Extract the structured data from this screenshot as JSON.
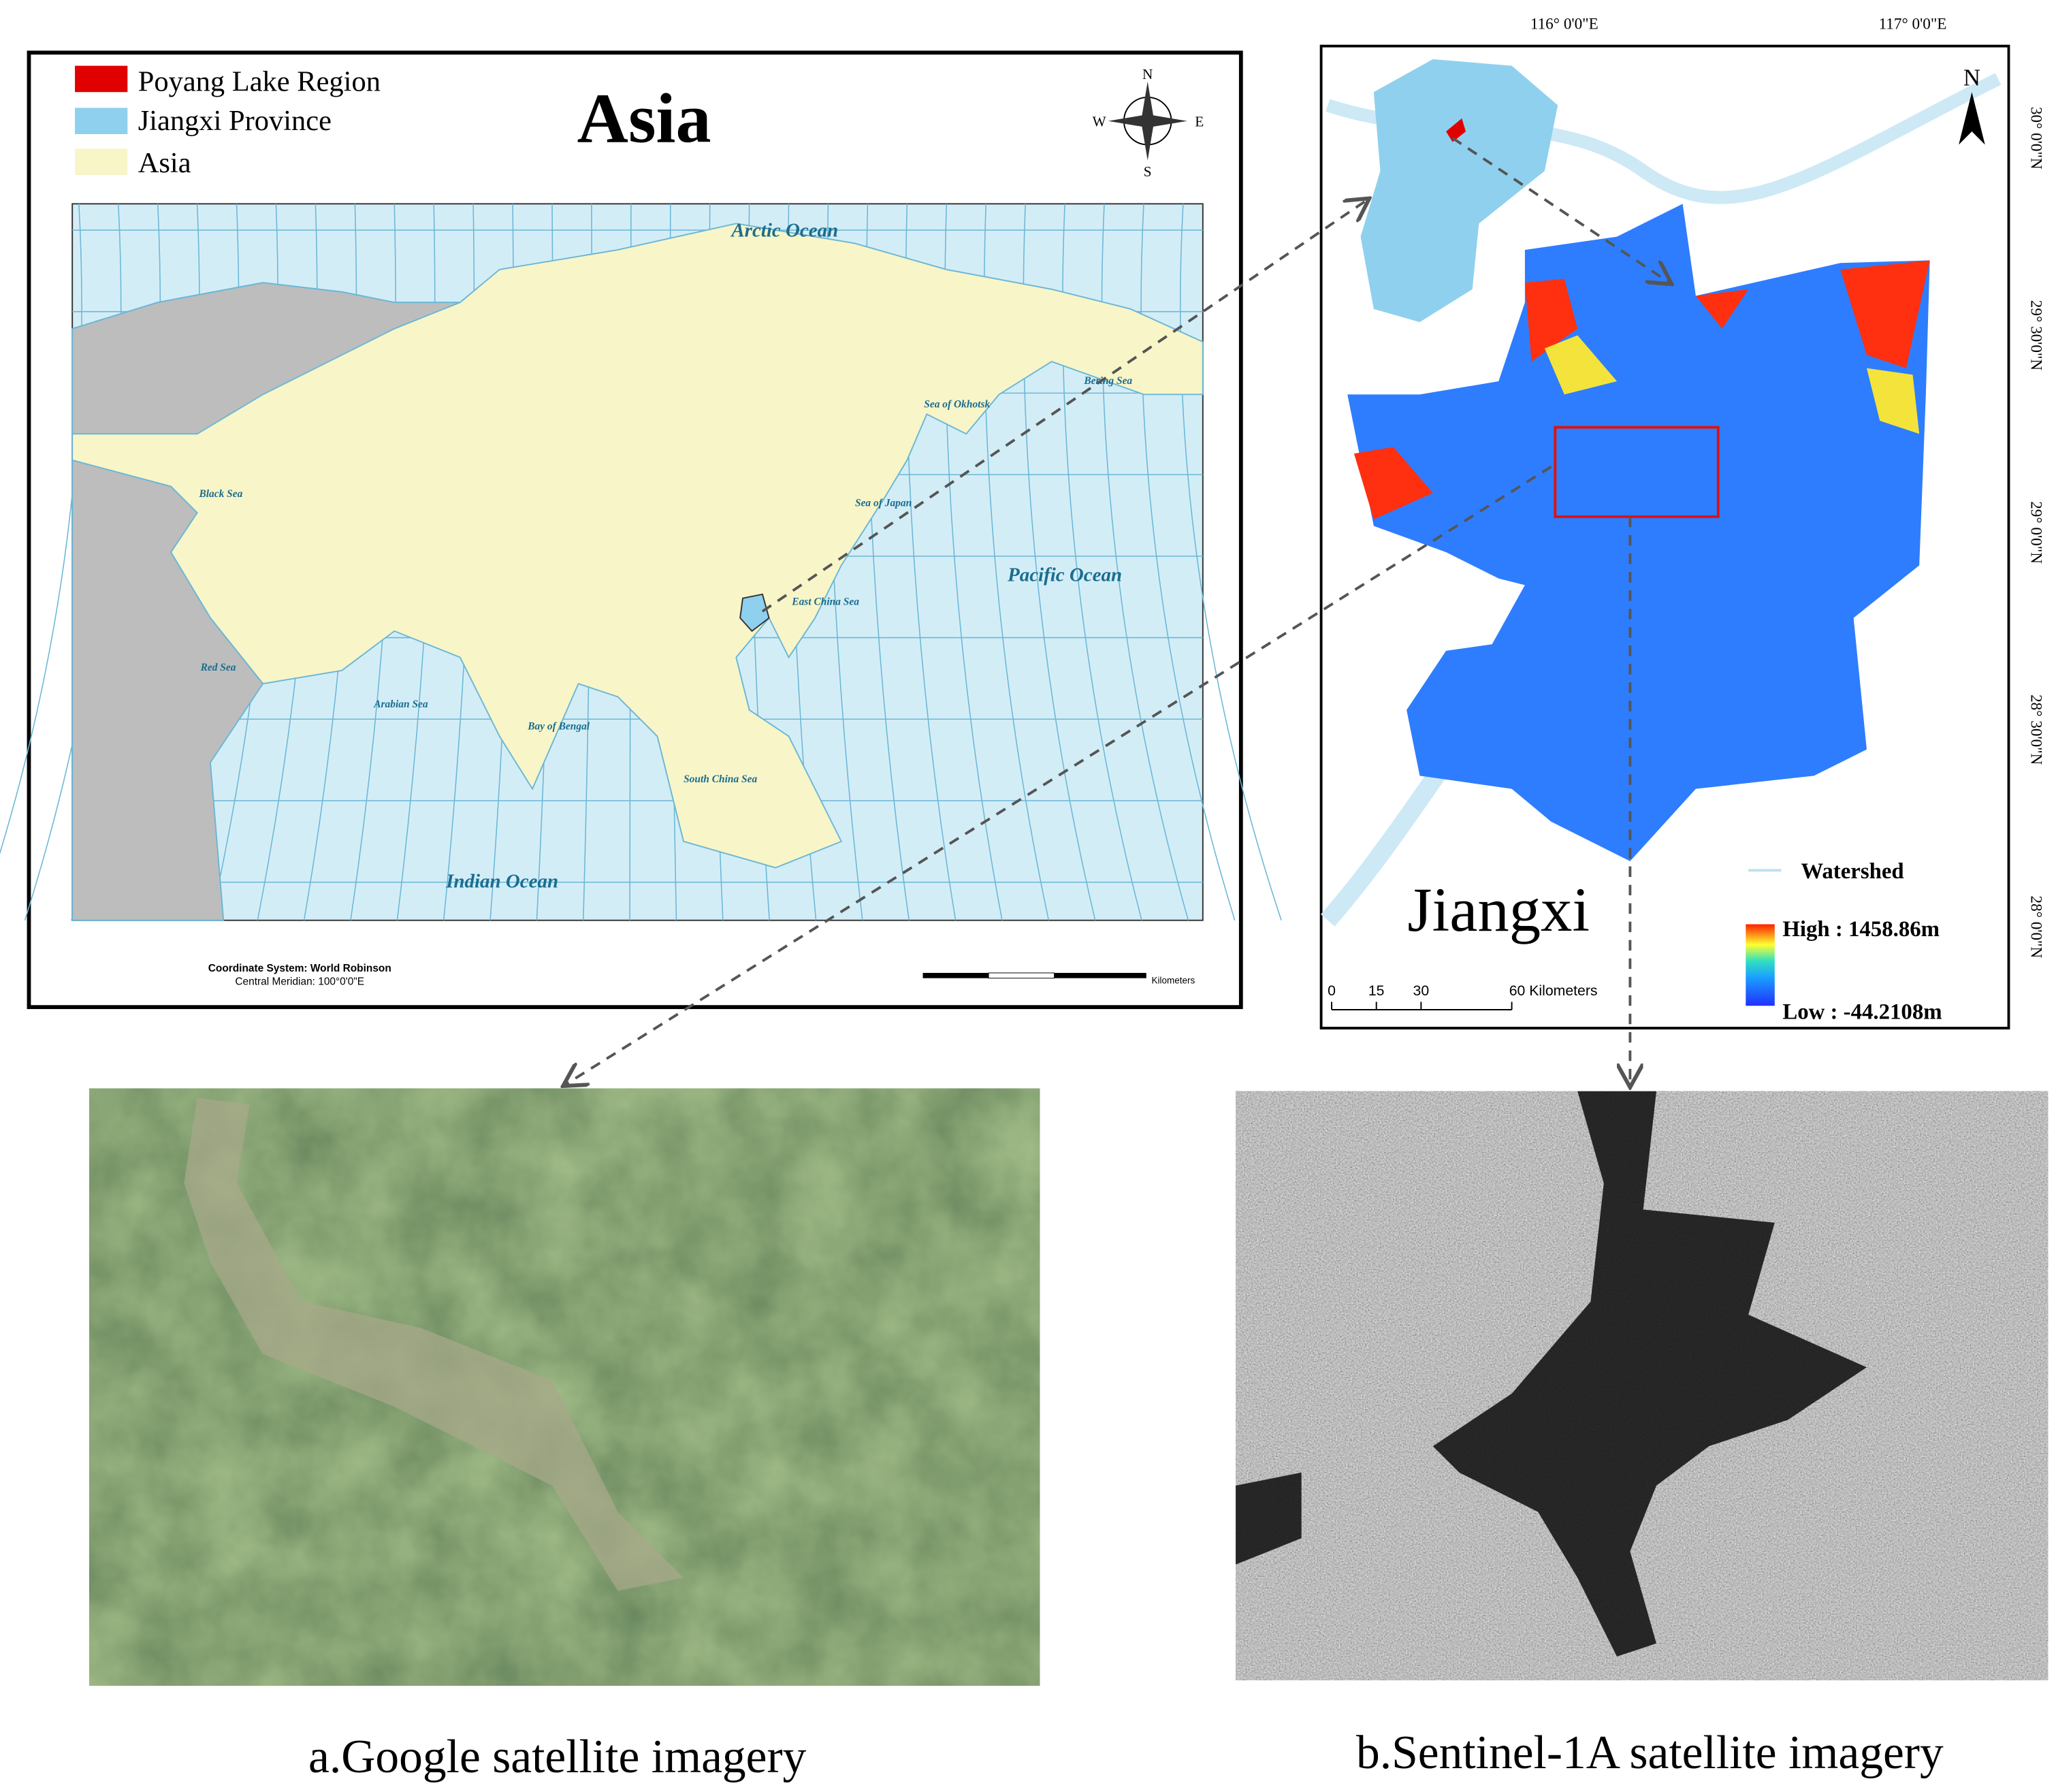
{
  "asia_map": {
    "title": "Asia",
    "legend": [
      "Poyang Lake Region",
      "Jiangxi Province",
      "Asia"
    ],
    "compass": [
      "N",
      "S",
      "E",
      "W"
    ],
    "labels": [
      "Arctic Ocean",
      "Pacific Ocean",
      "Indian Ocean",
      "Bering Sea",
      "Sea of Okhotsk",
      "Black Sea",
      "Sea of Japan",
      "East China Sea",
      "Red Sea",
      "Arabian Sea",
      "Bay of Bengal",
      "South China Sea"
    ],
    "coordinate_system": "Coordinate System: World Robinson",
    "central_meridian": "Central Meridian: 100°0'0\"E",
    "scale_unit": "Kilometers"
  },
  "jiangxi_map": {
    "title": "Jiangxi",
    "north": "N",
    "longitudes": [
      "116° 0'0\"E",
      "117° 0'0\"E"
    ],
    "latitudes": [
      "30° 0'0\"N",
      "29° 30'0\"N",
      "29° 0'0\"N",
      "28° 30'0\"N",
      "28° 0'0\"N"
    ],
    "watershed": "Watershed",
    "high": "High : 1458.86m",
    "low": "Low : -44.2108m",
    "scale": [
      "0",
      "15",
      "30",
      "60 Kilometers"
    ]
  },
  "captions": [
    "a.Google satellite imagery",
    "b.Sentinel-1A satellite imagery"
  ]
}
